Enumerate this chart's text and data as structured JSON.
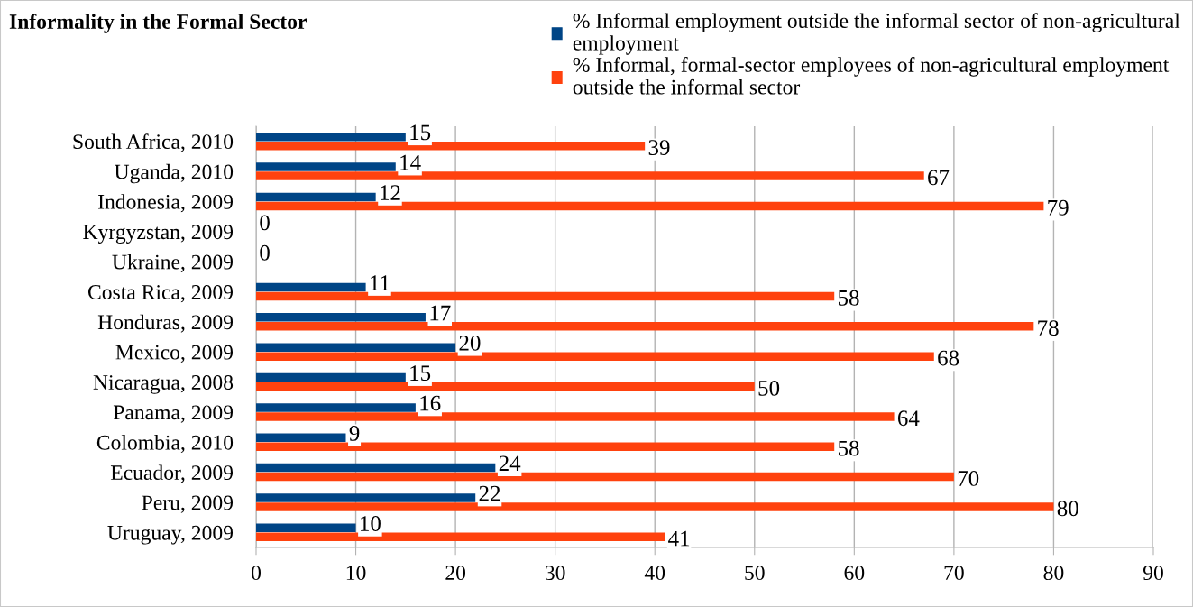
{
  "chart_data": {
    "type": "bar",
    "orientation": "horizontal",
    "title": "Informality in the Formal Sector",
    "categories": [
      "South Africa, 2010",
      "Uganda, 2010",
      "Indonesia, 2009",
      "Kyrgyzstan, 2009",
      "Ukraine, 2009",
      "Costa Rica, 2009",
      "Honduras, 2009",
      "Mexico, 2009",
      "Nicaragua, 2008",
      "Panama, 2009",
      "Colombia, 2010",
      "Ecuador, 2009",
      "Peru, 2009",
      "Uruguay, 2009"
    ],
    "series": [
      {
        "name": "% Informal employment outside the informal sector of non-agricultural employment",
        "color": "#004586",
        "values": [
          15,
          14,
          12,
          0,
          0,
          11,
          17,
          20,
          15,
          16,
          9,
          24,
          22,
          10
        ]
      },
      {
        "name": "% Informal, formal-sector employees of non-agricultural employment outside the informal sector",
        "color": "#ff420e",
        "values": [
          39,
          67,
          79,
          null,
          null,
          58,
          78,
          68,
          50,
          64,
          58,
          70,
          80,
          41
        ]
      }
    ],
    "xlim": [
      0,
      90
    ],
    "xticks": [
      0,
      10,
      20,
      30,
      40,
      50,
      60,
      70,
      80,
      90
    ],
    "grid": "x",
    "legend": "top right",
    "data_labels": true
  }
}
